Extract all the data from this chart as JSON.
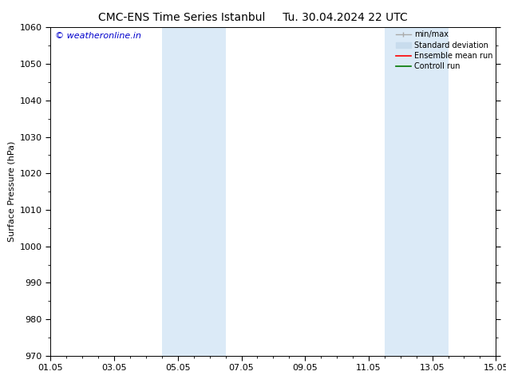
{
  "title_left": "CMC-ENS Time Series Istanbul",
  "title_right": "Tu. 30.04.2024 22 UTC",
  "ylabel": "Surface Pressure (hPa)",
  "ylim": [
    970,
    1060
  ],
  "yticks": [
    970,
    980,
    990,
    1000,
    1010,
    1020,
    1030,
    1040,
    1050,
    1060
  ],
  "xtick_labels": [
    "01.05",
    "03.05",
    "05.05",
    "07.05",
    "09.05",
    "11.05",
    "13.05",
    "15.05"
  ],
  "xtick_positions": [
    0,
    2,
    4,
    6,
    8,
    10,
    12,
    14
  ],
  "xlim": [
    -0.0,
    14.0
  ],
  "shaded_bands": [
    {
      "x_start": 3.5,
      "x_end": 5.5
    },
    {
      "x_start": 10.5,
      "x_end": 12.5
    }
  ],
  "shaded_color": "#dbeaf7",
  "background_color": "#ffffff",
  "watermark_text": "© weatheronline.in",
  "watermark_color": "#0000cc",
  "legend_items": [
    {
      "label": "min/max",
      "color": "#aaaaaa"
    },
    {
      "label": "Standard deviation",
      "color": "#c8dced"
    },
    {
      "label": "Ensemble mean run",
      "color": "#ff0000"
    },
    {
      "label": "Controll run",
      "color": "#007700"
    }
  ],
  "title_fontsize": 10,
  "axis_label_fontsize": 8,
  "tick_fontsize": 8,
  "watermark_fontsize": 8,
  "legend_fontsize": 7
}
